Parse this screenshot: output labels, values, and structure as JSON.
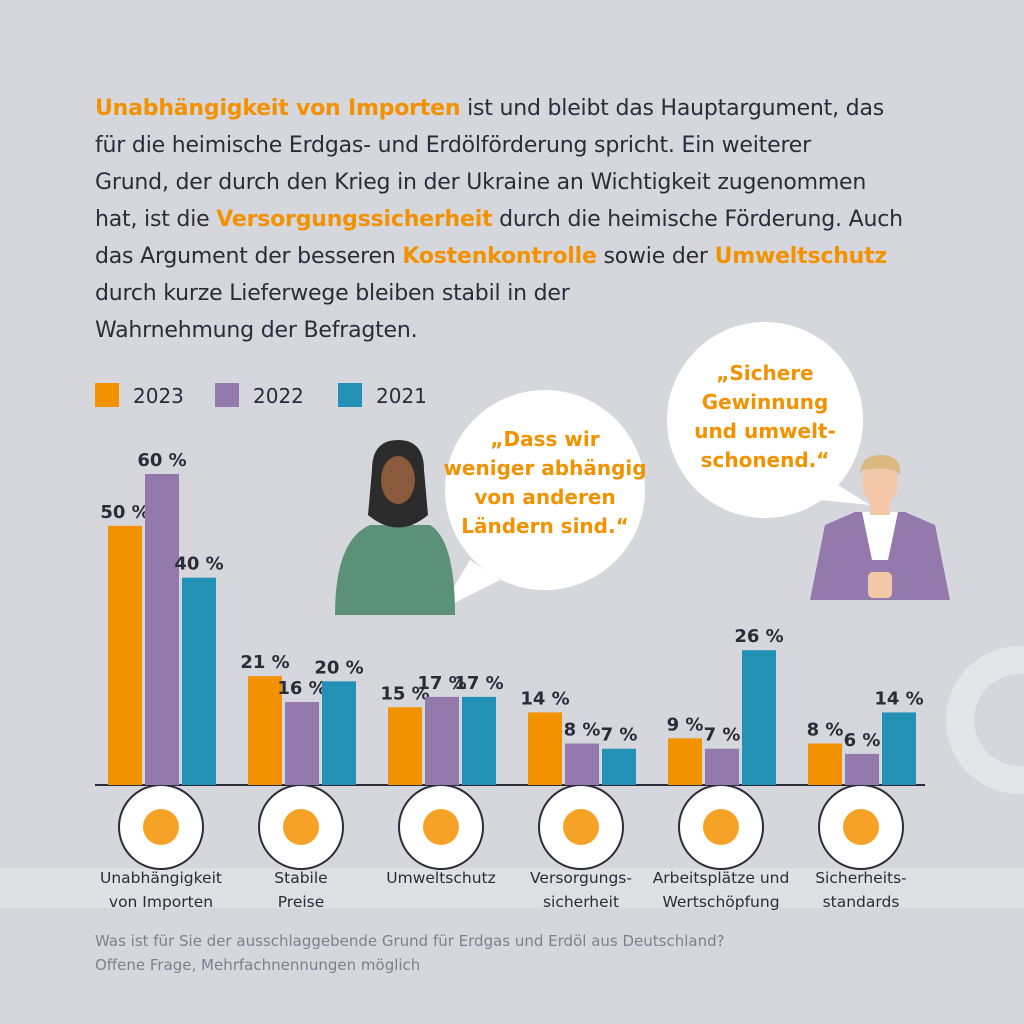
{
  "intro": {
    "lines": [
      [
        {
          "text": "Unabhängigkeit von Importen",
          "highlight": true
        },
        {
          "text": " ist und bleibt das Hauptargument, das",
          "highlight": false
        }
      ],
      [
        {
          "text": "für die heimische Erdgas- und Erdölförderung spricht. Ein weiterer",
          "highlight": false
        }
      ],
      [
        {
          "text": "Grund, der durch den Krieg in der Ukraine an Wichtigkeit zugenommen",
          "highlight": false
        }
      ],
      [
        {
          "text": "hat, ist die ",
          "highlight": false
        },
        {
          "text": "Versorgungssicherheit",
          "highlight": true
        },
        {
          "text": " durch die heimische Förderung. Auch",
          "highlight": false
        }
      ],
      [
        {
          "text": "das Argument der besseren ",
          "highlight": false
        },
        {
          "text": "Kostenkontrolle",
          "highlight": true
        },
        {
          "text": " sowie der ",
          "highlight": false
        },
        {
          "text": "Umweltschutz",
          "highlight": true
        }
      ],
      [
        {
          "text": "durch kurze Lieferwege bleiben stabil in der",
          "highlight": false
        }
      ],
      [
        {
          "text": "Wahrnehmung der Befragten.",
          "highlight": false
        }
      ]
    ]
  },
  "quotes": [
    {
      "lines": [
        "„Dass wir",
        "weniger abhängig",
        "von anderen",
        "Ländern sind.“"
      ]
    },
    {
      "lines": [
        "„Sichere",
        "Gewinnung",
        "und umwelt-",
        "schonend.“"
      ]
    }
  ],
  "question": [
    "Was ist für Sie der ausschlaggebende Grund für Erdgas und Erdöl aus Deutschland?",
    "Offene Frage, Mehrfachnennungen möglich"
  ],
  "chart_data": {
    "type": "bar",
    "categories": [
      [
        "Unabhängigkeit",
        "von Importen"
      ],
      [
        "Stabile",
        "Preise"
      ],
      [
        "Umweltschutz"
      ],
      [
        "Versorgungs-",
        "sicherheit"
      ],
      [
        "Arbeitsplätze und",
        "Wertschöpfung"
      ],
      [
        "Sicherheits-",
        "standards"
      ]
    ],
    "series": [
      {
        "name": "2023",
        "color": "#f39200",
        "values": [
          50,
          21,
          15,
          14,
          9,
          8
        ],
        "value_labels": [
          "50 %",
          "21 %",
          "15 %",
          "14 %",
          "9 %",
          "8 %"
        ]
      },
      {
        "name": "2022",
        "color": "#9479ad",
        "values": [
          60,
          16,
          17,
          8,
          7,
          6
        ],
        "value_labels": [
          "60 %",
          "16 %",
          "17 %",
          "8 %",
          "7 %",
          "6 %"
        ]
      },
      {
        "name": "2021",
        "color": "#2390b6",
        "values": [
          40,
          20,
          17,
          7,
          26,
          14
        ],
        "value_labels": [
          "40 %",
          "20 %",
          "17 %",
          "7 %",
          "26 %",
          "14 %"
        ]
      }
    ],
    "ylim": [
      0,
      60
    ]
  }
}
